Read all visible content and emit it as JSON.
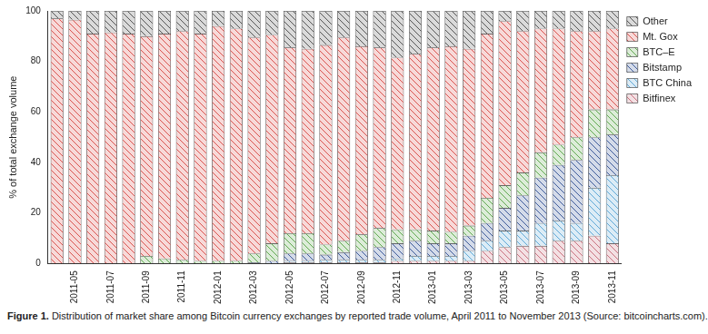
{
  "chart_data": {
    "type": "bar",
    "stacked": true,
    "caption": "Figure 1. Distribution of market share among Bitcoin currency exchanges by reported trade volume, April 2011 to November 2013 (Source: bitcoincharts.com).",
    "y_label": "% of total exchange volume",
    "categories": [
      null,
      "2011-05",
      null,
      "2011-07",
      null,
      "2011-09",
      null,
      "2011-11",
      null,
      "2012-01",
      null,
      "2012-03",
      null,
      "2012-05",
      null,
      "2012-07",
      null,
      "2012-09",
      null,
      "2012-11",
      null,
      "2013-01",
      null,
      "2013-03",
      null,
      "2013-05",
      null,
      "2013-07",
      null,
      "2013-09",
      null,
      "2013-11"
    ],
    "ylim": [
      0,
      100
    ],
    "yticks": [
      0,
      20,
      40,
      60,
      80,
      100
    ],
    "grid": false,
    "legend": "right",
    "series": [
      {
        "name": "Other",
        "color": "#555555",
        "values": [
          3,
          3.5,
          9,
          8.5,
          9,
          10,
          9,
          8,
          9,
          6,
          7,
          10.5,
          9.5,
          14.5,
          15,
          13.5,
          10.5,
          14,
          14.5,
          18.5,
          17,
          14.5,
          14,
          15,
          9,
          4,
          8,
          7,
          7,
          8,
          8,
          7
        ]
      },
      {
        "name": "Mt. Gox",
        "color": "#d9534f",
        "values": [
          97,
          96.5,
          91,
          91.5,
          91,
          87,
          89,
          90.5,
          90,
          93,
          92,
          85.5,
          82.5,
          73.5,
          73,
          79,
          80.5,
          74.5,
          71.5,
          68,
          69.5,
          72.5,
          73.5,
          70,
          65,
          65,
          56,
          49,
          46,
          42,
          31,
          32
        ]
      },
      {
        "name": "BTC–E",
        "color": "#5fa84f",
        "values": [
          0,
          0,
          0,
          0,
          0,
          3,
          2,
          1.5,
          1,
          1,
          1,
          3.5,
          7,
          8,
          8,
          4,
          4.5,
          6.5,
          7.5,
          5.5,
          4.5,
          5,
          4.5,
          4,
          10,
          9,
          9,
          10,
          8,
          9,
          11,
          10
        ]
      },
      {
        "name": "Bitstamp",
        "color": "#3d5a99",
        "values": [
          0,
          0,
          0,
          0,
          0,
          0,
          0,
          0,
          0,
          0,
          0,
          0.5,
          1,
          3,
          3,
          2,
          3,
          3.5,
          5,
          6,
          6,
          5,
          5,
          6,
          7,
          9,
          14,
          18,
          22,
          25,
          20,
          16
        ]
      },
      {
        "name": "BTC China",
        "color": "#5fa8d6",
        "values": [
          0,
          0,
          0,
          0,
          0,
          0,
          0,
          0,
          0,
          0,
          0,
          0,
          0,
          0.5,
          0.5,
          1,
          1,
          1,
          1,
          1,
          2,
          2,
          2,
          4,
          4,
          6.5,
          6,
          9,
          8,
          7,
          19,
          27
        ]
      },
      {
        "name": "Bitfinex",
        "color": "#c9707e",
        "values": [
          0,
          0,
          0,
          0,
          0,
          0,
          0,
          0,
          0,
          0,
          0,
          0,
          0,
          0.5,
          0.5,
          0.5,
          0.5,
          0.5,
          0.5,
          1,
          1,
          1,
          1,
          1,
          5,
          6.5,
          7,
          7,
          9,
          9,
          11,
          8
        ]
      }
    ]
  }
}
